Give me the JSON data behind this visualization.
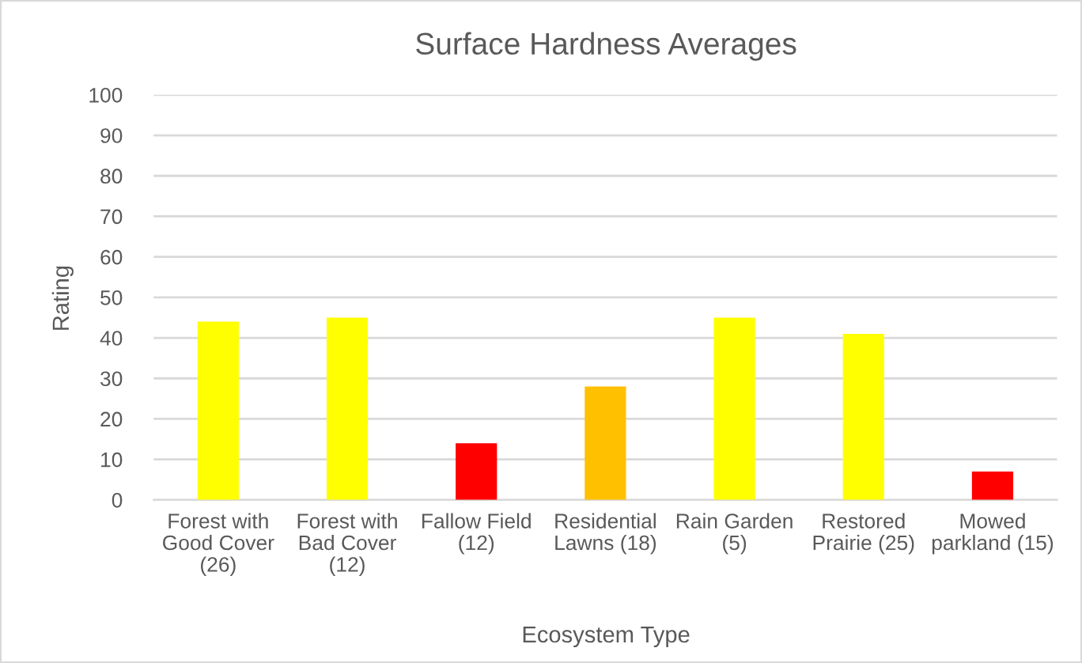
{
  "chart_data": {
    "type": "bar",
    "title": "Surface Hardness Averages",
    "xlabel": "Ecosystem Type",
    "ylabel": "Rating",
    "categories": [
      "Forest with Good Cover (26)",
      "Forest with Bad Cover (12)",
      "Fallow Field (12)",
      "Residential Lawns (18)",
      "Rain Garden (5)",
      "Restored Prairie (25)",
      "Mowed parkland (15)"
    ],
    "values": [
      44,
      45,
      14,
      28,
      45,
      41,
      7
    ],
    "colors": [
      "#ffff00",
      "#ffff00",
      "#ff0000",
      "#ffc000",
      "#ffff00",
      "#ffff00",
      "#ff0000"
    ],
    "ylim": [
      0,
      100
    ],
    "yticks": [
      0,
      10,
      20,
      30,
      40,
      50,
      60,
      70,
      80,
      90,
      100
    ],
    "grid": "y"
  }
}
